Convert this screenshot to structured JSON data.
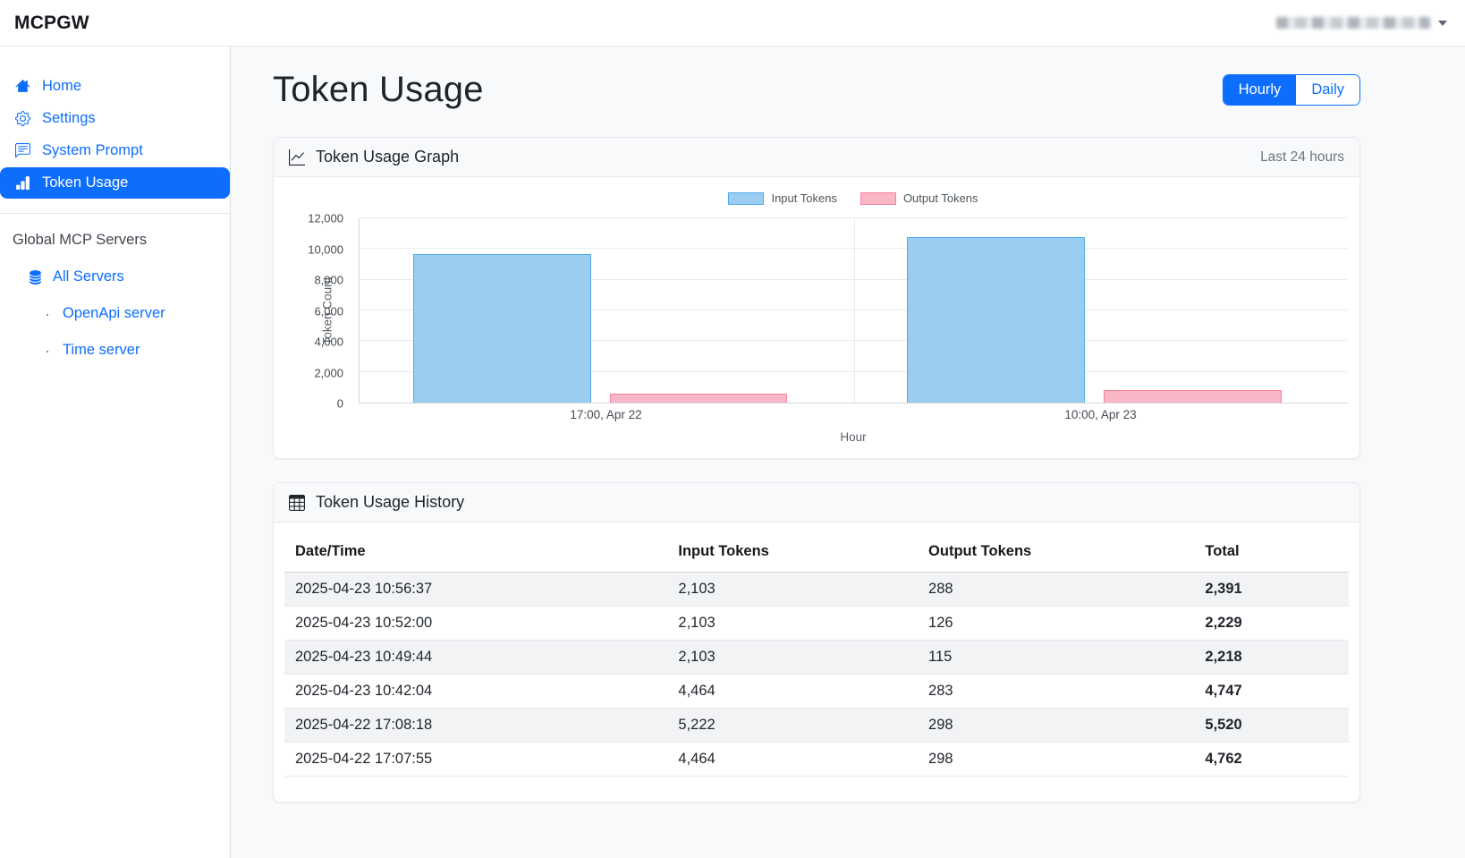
{
  "topbar": {
    "logo": "MCPGW",
    "user": {
      "redacted": true
    }
  },
  "sidebar": {
    "items": [
      {
        "label": "Home",
        "icon": "home-icon",
        "active": false
      },
      {
        "label": "Settings",
        "icon": "gear-icon",
        "active": false
      },
      {
        "label": "System Prompt",
        "icon": "chat-icon",
        "active": false
      },
      {
        "label": "Token Usage",
        "icon": "bar-chart-icon",
        "active": true
      }
    ],
    "section_title": "Global MCP Servers",
    "servers": [
      {
        "label": "All Servers",
        "icon": "database-icon",
        "level": 1
      },
      {
        "label": "OpenApi server",
        "icon": "bullet",
        "level": 2
      },
      {
        "label": "Time server",
        "icon": "bullet",
        "level": 2
      }
    ]
  },
  "main": {
    "title": "Token Usage",
    "toggle": {
      "options": [
        "Hourly",
        "Daily"
      ],
      "active": "Hourly"
    },
    "graph_card": {
      "title": "Token Usage Graph",
      "range_label": "Last 24 hours"
    },
    "history_card": {
      "title": "Token Usage History"
    }
  },
  "chart_data": {
    "type": "bar",
    "title": "",
    "categories": [
      "17:00, Apr 22",
      "10:00, Apr 23"
    ],
    "series": [
      {
        "name": "Input Tokens",
        "values": [
          9686,
          10773
        ],
        "fill": "#9bcdf0",
        "border": "#4fabea"
      },
      {
        "name": "Output Tokens",
        "values": [
          596,
          812
        ],
        "fill": "#f9b6c6",
        "border": "#f2839c"
      }
    ],
    "xlabel": "Hour",
    "ylabel": "Token Count",
    "ylim": [
      0,
      12000
    ],
    "yticks": [
      0,
      2000,
      4000,
      6000,
      8000,
      10000,
      12000
    ],
    "ytick_labels": [
      "0",
      "2,000",
      "4,000",
      "6,000",
      "8,000",
      "10,000",
      "12,000"
    ],
    "grid": true,
    "legend_position": "top-center"
  },
  "history": {
    "columns": [
      "Date/Time",
      "Input Tokens",
      "Output Tokens",
      "Total"
    ],
    "rows": [
      [
        "2025-04-23 10:56:37",
        "2,103",
        "288",
        "2,391"
      ],
      [
        "2025-04-23 10:52:00",
        "2,103",
        "126",
        "2,229"
      ],
      [
        "2025-04-23 10:49:44",
        "2,103",
        "115",
        "2,218"
      ],
      [
        "2025-04-23 10:42:04",
        "4,464",
        "283",
        "4,747"
      ],
      [
        "2025-04-22 17:08:18",
        "5,222",
        "298",
        "5,520"
      ],
      [
        "2025-04-22 17:07:55",
        "4,464",
        "298",
        "4,762"
      ]
    ]
  },
  "colors": {
    "primary": "#0d6efd",
    "input_fill": "#9bcdf0",
    "input_border": "#4fabea",
    "output_fill": "#f9b6c6",
    "output_border": "#f2839c"
  }
}
